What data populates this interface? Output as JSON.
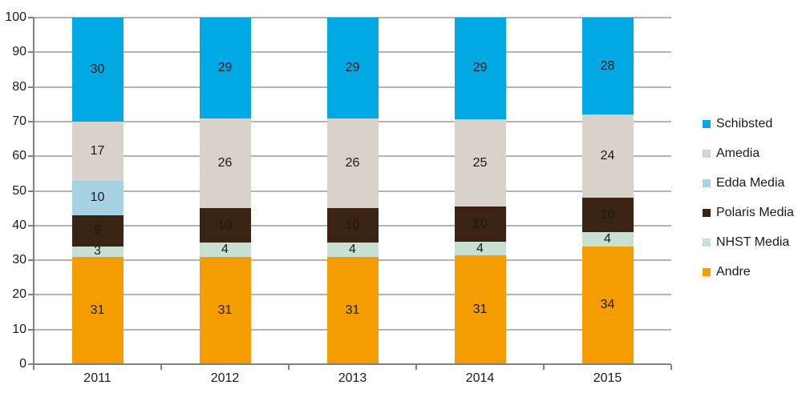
{
  "chart_data": {
    "type": "bar",
    "stacked": true,
    "title": "",
    "xlabel": "",
    "ylabel": "",
    "categories": [
      "2011",
      "2012",
      "2013",
      "2014",
      "2015"
    ],
    "series": [
      {
        "name": "Schibsted",
        "color": "#00a9e4",
        "values": [
          30,
          29,
          29,
          29,
          28
        ]
      },
      {
        "name": "Amedia",
        "color": "#d9d2cb",
        "values": [
          17,
          26,
          26,
          25,
          24
        ]
      },
      {
        "name": "Edda Media",
        "color": "#a6d3e3",
        "values": [
          10,
          null,
          null,
          null,
          null
        ]
      },
      {
        "name": "Polaris Media",
        "color": "#3b2313",
        "values": [
          9,
          10,
          10,
          10,
          10
        ]
      },
      {
        "name": "NHST Media",
        "color": "#c7e0d2",
        "values": [
          3,
          4,
          4,
          4,
          4
        ]
      },
      {
        "name": "Andre",
        "color": "#f59c00",
        "values": [
          31,
          31,
          31,
          31,
          34
        ]
      }
    ],
    "stack_order_bottom_to_top": [
      "Andre",
      "NHST Media",
      "Polaris Media",
      "Edda Media",
      "Amedia",
      "Schibsted"
    ],
    "ylim": [
      0,
      100
    ],
    "yticks": [
      0,
      10,
      20,
      30,
      40,
      50,
      60,
      70,
      80,
      90,
      100
    ],
    "grid": true,
    "legend_position": "right",
    "bar_value_labels_visible": true
  },
  "colors": {
    "background": "#ffffff",
    "gridline": "#b3b3b3",
    "axis": "#808080",
    "text": "#1a1a1a"
  }
}
